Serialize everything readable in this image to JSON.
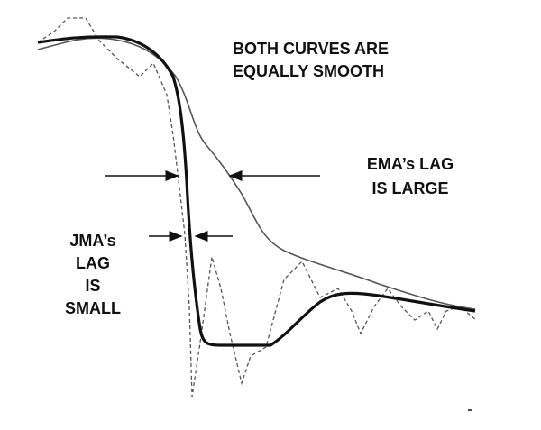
{
  "annotations": {
    "smoothness": [
      "BOTH  CURVES  ARE",
      "EQUALLY  SMOOTH"
    ],
    "ema": [
      "EMA’s  LAG",
      "IS LARGE"
    ],
    "jma": [
      "JMA’s",
      "LAG",
      "IS",
      "SMALL"
    ]
  }
}
